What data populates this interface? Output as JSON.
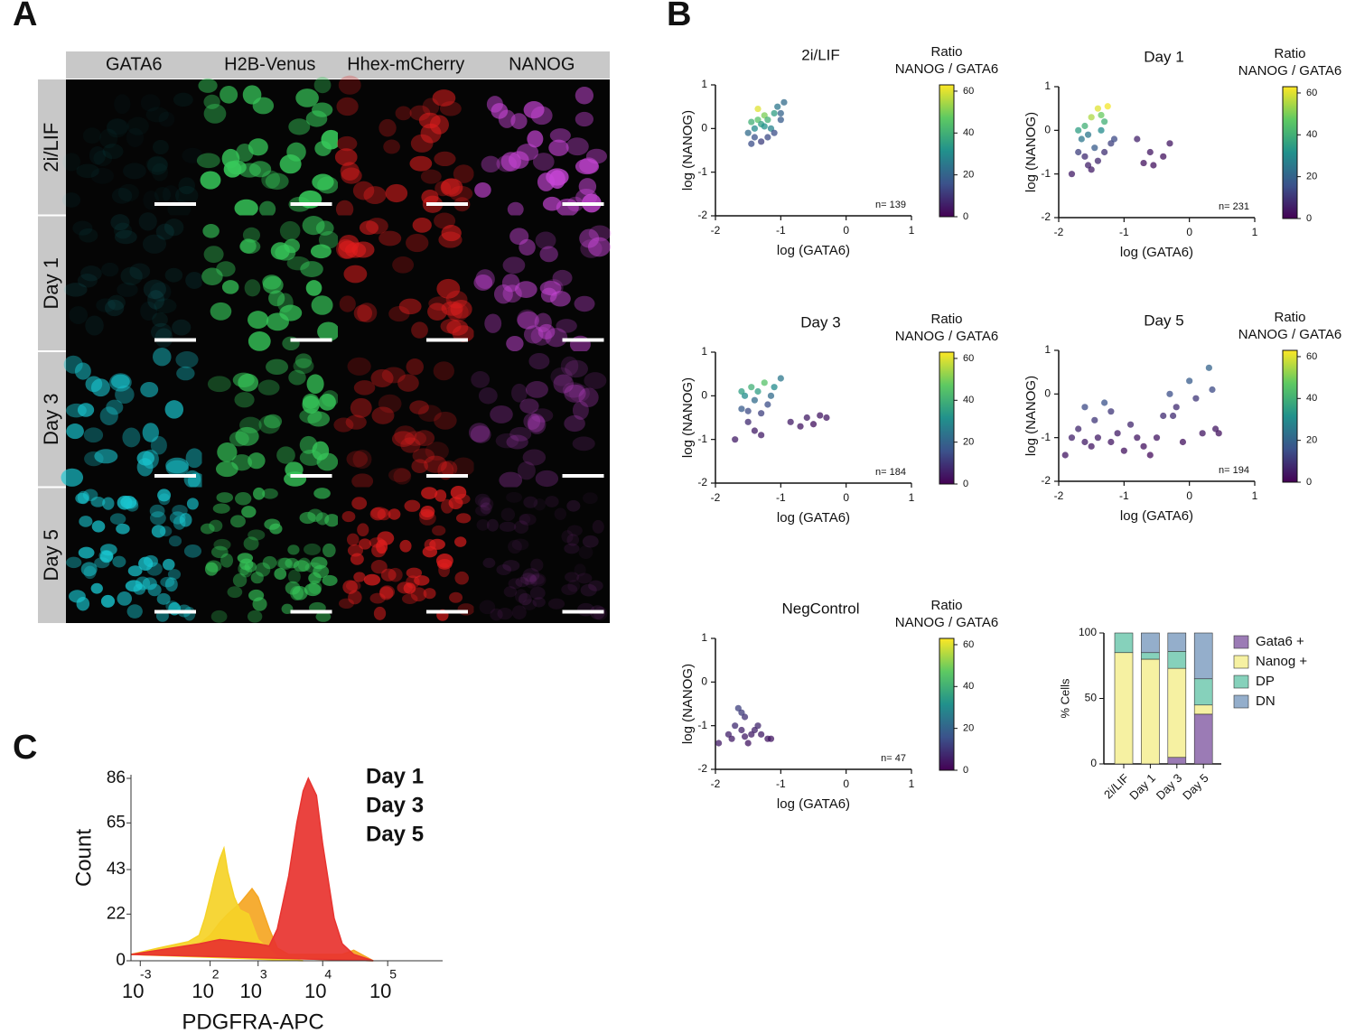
{
  "panel_labels": [
    "A",
    "B",
    "C"
  ],
  "panel_a": {
    "columns": [
      "GATA6",
      "H2B-Venus",
      "Hhex-mCherry",
      "NANOG"
    ],
    "rows": [
      "2i/LIF",
      "Day 1",
      "Day 3",
      "Day 5"
    ]
  },
  "chart_data": [
    {
      "type": "scatter",
      "title": "2i/LIF",
      "x_label": "log (GATA6)",
      "y_label": "log (NANOG)",
      "xlim": [
        -2,
        1
      ],
      "ylim": [
        -2,
        1
      ],
      "xticks": [
        -2,
        -1,
        0,
        1
      ],
      "yticks": [
        -2,
        -1,
        0,
        1
      ],
      "colorbar_label": [
        "Ratio",
        "NANOG / GATA6"
      ],
      "clim": [
        0,
        63
      ],
      "cticks": [
        0,
        20,
        40,
        60
      ],
      "colormap": "viridis",
      "annotation": "n= 139",
      "x": [
        -1.45,
        -1.5,
        -1.4,
        -1.35,
        -1.3,
        -1.25,
        -1.35,
        -1.2,
        -1.15,
        -1.1,
        -1.05,
        -0.95,
        -1.0,
        -1.2,
        -1.3,
        -1.4,
        -1.1,
        -1.25,
        -1.45,
        -1.0
      ],
      "y": [
        -0.35,
        -0.1,
        0.0,
        0.2,
        0.1,
        0.3,
        0.45,
        0.2,
        0.0,
        0.35,
        0.5,
        0.6,
        0.2,
        -0.2,
        -0.3,
        -0.2,
        -0.1,
        0.05,
        0.15,
        0.35
      ],
      "c": [
        15,
        22,
        30,
        45,
        35,
        50,
        60,
        40,
        28,
        35,
        25,
        22,
        18,
        14,
        12,
        16,
        15,
        32,
        40,
        20
      ]
    },
    {
      "type": "scatter",
      "title": "Day 1",
      "x_label": "log (GATA6)",
      "y_label": "log (NANOG)",
      "xlim": [
        -2,
        1
      ],
      "ylim": [
        -2,
        1
      ],
      "xticks": [
        -2,
        -1,
        0,
        1
      ],
      "yticks": [
        -2,
        -1,
        0,
        1
      ],
      "colorbar_label": [
        "Ratio",
        "NANOG / GATA6"
      ],
      "clim": [
        0,
        63
      ],
      "cticks": [
        0,
        20,
        40,
        60
      ],
      "colormap": "viridis",
      "annotation": "n= 231",
      "x": [
        -1.8,
        -1.7,
        -1.65,
        -1.6,
        -1.55,
        -1.5,
        -1.45,
        -1.4,
        -1.35,
        -1.3,
        -1.25,
        -1.2,
        -1.5,
        -1.6,
        -1.4,
        -1.3,
        -1.15,
        -1.7,
        -0.8,
        -0.7,
        -0.6,
        -0.4,
        -0.3,
        -0.55,
        -1.55,
        -1.35
      ],
      "y": [
        -1.0,
        -0.5,
        -0.2,
        0.1,
        -0.8,
        0.3,
        -0.4,
        0.5,
        0.0,
        0.2,
        0.55,
        -0.3,
        -0.9,
        -0.6,
        -0.7,
        -0.5,
        -0.2,
        0.0,
        -0.2,
        -0.75,
        -0.5,
        -0.6,
        -0.3,
        -0.8,
        -0.1,
        0.35
      ],
      "c": [
        5,
        12,
        25,
        40,
        6,
        55,
        18,
        60,
        30,
        40,
        62,
        12,
        5,
        8,
        7,
        9,
        14,
        35,
        6,
        3,
        4,
        3,
        4,
        3,
        25,
        48
      ]
    },
    {
      "type": "scatter",
      "title": "Day 3",
      "x_label": "log (GATA6)",
      "y_label": "log (NANOG)",
      "xlim": [
        -2,
        1
      ],
      "ylim": [
        -2,
        1
      ],
      "xticks": [
        -2,
        -1,
        0,
        1
      ],
      "yticks": [
        -2,
        -1,
        0,
        1
      ],
      "colorbar_label": [
        "Ratio",
        "NANOG / GATA6"
      ],
      "clim": [
        0,
        63
      ],
      "cticks": [
        0,
        20,
        40,
        60
      ],
      "colormap": "viridis",
      "annotation": "n= 184",
      "x": [
        -1.7,
        -1.6,
        -1.55,
        -1.5,
        -1.45,
        -1.4,
        -1.35,
        -1.3,
        -1.25,
        -1.2,
        -1.1,
        -1.0,
        -1.5,
        -1.4,
        -1.3,
        -0.85,
        -0.7,
        -0.6,
        -0.5,
        -0.4,
        -0.3,
        -1.6,
        -1.15
      ],
      "y": [
        -1.0,
        -0.3,
        0.0,
        -0.6,
        0.2,
        -0.8,
        0.1,
        -0.4,
        0.3,
        -0.2,
        0.2,
        0.4,
        -0.35,
        -0.1,
        -0.9,
        -0.6,
        -0.7,
        -0.5,
        -0.65,
        -0.45,
        -0.5,
        0.1,
        0.0
      ],
      "c": [
        5,
        18,
        30,
        8,
        40,
        5,
        35,
        12,
        45,
        15,
        30,
        25,
        14,
        22,
        5,
        5,
        4,
        5,
        3,
        4,
        4,
        35,
        22
      ]
    },
    {
      "type": "scatter",
      "title": "Day 5",
      "x_label": "log (GATA6)",
      "y_label": "log (NANOG)",
      "xlim": [
        -2,
        1
      ],
      "ylim": [
        -2,
        1
      ],
      "xticks": [
        -2,
        -1,
        0,
        1
      ],
      "yticks": [
        -2,
        -1,
        0,
        1
      ],
      "colorbar_label": [
        "Ratio",
        "NANOG / GATA6"
      ],
      "clim": [
        0,
        63
      ],
      "cticks": [
        0,
        20,
        40,
        60
      ],
      "colormap": "viridis",
      "annotation": "n= 194",
      "x": [
        -1.9,
        -1.8,
        -1.7,
        -1.6,
        -1.5,
        -1.45,
        -1.4,
        -1.3,
        -1.2,
        -1.1,
        -1.0,
        -0.9,
        -0.8,
        -0.7,
        -0.6,
        -0.5,
        -0.4,
        -0.3,
        -0.2,
        -0.1,
        0.0,
        0.1,
        0.2,
        0.3,
        0.4,
        0.45,
        -1.6,
        -1.2,
        -0.25,
        0.35
      ],
      "y": [
        -1.4,
        -1.0,
        -0.8,
        -0.3,
        -1.2,
        -0.6,
        -1.0,
        -0.2,
        -1.1,
        -0.9,
        -1.3,
        -0.7,
        -1.0,
        -1.2,
        -1.4,
        -1.0,
        -0.5,
        0.0,
        -0.3,
        -1.1,
        0.3,
        -0.1,
        -0.9,
        0.6,
        -0.8,
        -0.9,
        -1.1,
        -0.4,
        -0.5,
        0.1
      ],
      "c": [
        4,
        6,
        7,
        14,
        4,
        10,
        5,
        16,
        4,
        5,
        3,
        7,
        4,
        3,
        2,
        4,
        8,
        15,
        8,
        3,
        18,
        10,
        4,
        20,
        4,
        3,
        5,
        10,
        8,
        14
      ]
    },
    {
      "type": "scatter",
      "title": "NegControl",
      "x_label": "log (GATA6)",
      "y_label": "log (NANOG)",
      "xlim": [
        -2,
        1
      ],
      "ylim": [
        -2,
        1
      ],
      "xticks": [
        -2,
        -1,
        0,
        1
      ],
      "yticks": [
        -2,
        -1,
        0,
        1
      ],
      "colorbar_label": [
        "Ratio",
        "NANOG / GATA6"
      ],
      "clim": [
        0,
        63
      ],
      "cticks": [
        0,
        20,
        40,
        60
      ],
      "colormap": "viridis",
      "annotation": "n= 47",
      "x": [
        -1.95,
        -1.8,
        -1.75,
        -1.7,
        -1.65,
        -1.6,
        -1.55,
        -1.5,
        -1.45,
        -1.4,
        -1.35,
        -1.3,
        -1.2,
        -1.15,
        -1.6,
        -1.55
      ],
      "y": [
        -1.4,
        -1.2,
        -1.3,
        -1.0,
        -0.6,
        -1.1,
        -0.8,
        -1.4,
        -1.2,
        -1.1,
        -1.0,
        -1.2,
        -1.3,
        -1.3,
        -0.7,
        -1.25
      ],
      "c": [
        5,
        6,
        5,
        8,
        12,
        6,
        9,
        4,
        5,
        6,
        7,
        5,
        4,
        4,
        11,
        5
      ]
    },
    {
      "type": "stacked_bar",
      "y_label": "% Cells",
      "categories": [
        "2i/LIF",
        "Day 1",
        "Day 3",
        "Day 5"
      ],
      "ylim": [
        0,
        100
      ],
      "yticks": [
        0,
        50,
        100
      ],
      "series": [
        {
          "name": "Gata6 +",
          "color": "#9b7bb5",
          "values": [
            0,
            0,
            5,
            38
          ]
        },
        {
          "name": "Nanog +",
          "color": "#f6f1a2",
          "values": [
            85,
            80,
            68,
            7
          ]
        },
        {
          "name": "DP",
          "color": "#86d1bb",
          "values": [
            15,
            5,
            13,
            20
          ]
        },
        {
          "name": "DN",
          "color": "#94aecb",
          "values": [
            0,
            15,
            14,
            35
          ]
        }
      ]
    },
    {
      "type": "area",
      "x_label": "PDGFRA-APC",
      "y_label": "Count",
      "xscale": "biexponential",
      "xlim": [
        -1400,
        700000
      ],
      "ylim": [
        0,
        86
      ],
      "yticks": [
        0,
        22,
        43,
        65,
        86
      ],
      "xticks": [
        {
          "value": -1000,
          "label": "10"
        },
        {
          "value": 100,
          "label": "10"
        },
        {
          "value": 1000,
          "label": "10"
        },
        {
          "value": 10000,
          "label": "10"
        },
        {
          "value": 100000,
          "label": "10"
        }
      ],
      "xtick_exponents": [
        "-3",
        "2",
        "3",
        "4",
        "5"
      ],
      "series": [
        {
          "name": "Day 1",
          "color": "#f5d327",
          "x": [
            -1400,
            -500,
            -100,
            0,
            50,
            100,
            150,
            200,
            250,
            300,
            400,
            500,
            700,
            1000,
            2000,
            5000
          ],
          "values": [
            3,
            6,
            9,
            12,
            20,
            30,
            40,
            48,
            53,
            42,
            30,
            24,
            22,
            10,
            2,
            0
          ]
        },
        {
          "name": "Day 3",
          "color": "#f5a623",
          "x": [
            -1400,
            -500,
            0,
            100,
            200,
            300,
            500,
            800,
            1000,
            1500,
            2000,
            3000,
            20000,
            30000,
            60000
          ],
          "values": [
            3,
            5,
            8,
            12,
            18,
            22,
            27,
            34,
            30,
            15,
            6,
            3,
            3,
            5,
            0
          ]
        },
        {
          "name": "Day 5",
          "color": "#e8332f",
          "x": [
            -1400,
            -500,
            0,
            200,
            500,
            1000,
            1500,
            2000,
            3000,
            4000,
            5000,
            6000,
            8000,
            10000,
            15000,
            20000,
            30000,
            60000
          ],
          "values": [
            3,
            5,
            8,
            10,
            9,
            8,
            7,
            15,
            40,
            65,
            80,
            86,
            78,
            55,
            20,
            8,
            3,
            0
          ]
        }
      ]
    }
  ]
}
